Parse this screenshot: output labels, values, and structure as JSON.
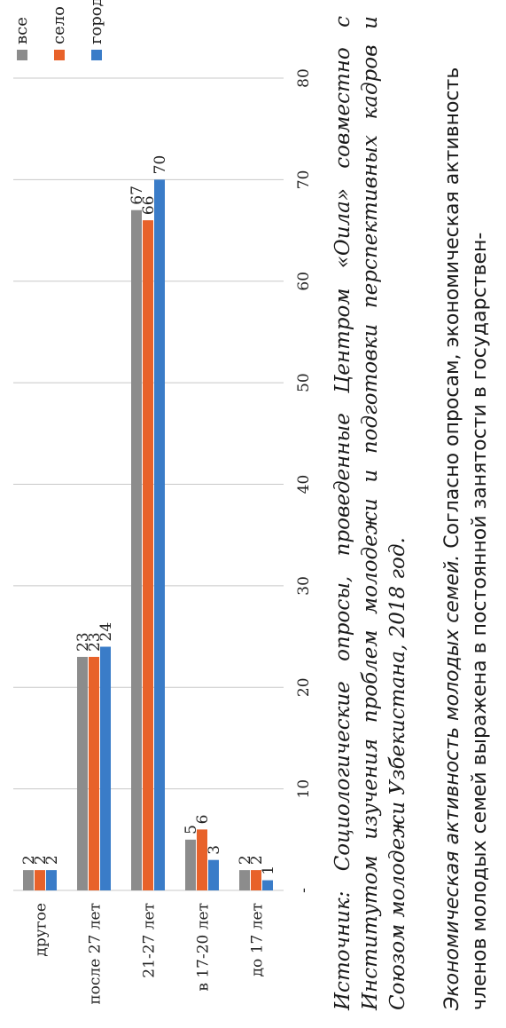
{
  "chart_data": {
    "type": "bar",
    "orientation": "horizontal",
    "categories": [
      "другое",
      "после 27 лет",
      "21-27 лет",
      "в 17-20 лет",
      "до 17 лет"
    ],
    "series": [
      {
        "name": "все",
        "color": "#8c8c8c",
        "values": [
          2,
          23,
          67,
          5,
          2
        ]
      },
      {
        "name": "село",
        "color": "#e8622a",
        "values": [
          2,
          23,
          66,
          6,
          2
        ]
      },
      {
        "name": "город",
        "color": "#3a7cc8",
        "values": [
          2,
          24,
          70,
          3,
          1
        ]
      }
    ],
    "xlim": [
      0,
      80
    ],
    "xticks": [
      "-",
      "10",
      "20",
      "30",
      "40",
      "50",
      "60",
      "70",
      "80"
    ],
    "grid": true,
    "legend_position": "right"
  },
  "caption": {
    "text": "Источник: Социологические опросы, проведенные Центром «Оила» совместно с Институтом изучения проблем молодежи и подготовки перспективных кадров и Союзом молодежи Узбекистана, 2018 год."
  },
  "body": {
    "italic_lead": "Экономическая активность молодых семей.",
    "text": " Согласно опросам, экономическая активность членов молодых семей выражена в постоянной занятости в государствен-"
  }
}
